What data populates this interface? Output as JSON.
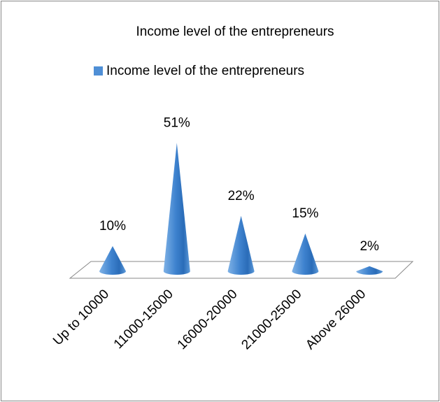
{
  "chart_data": {
    "type": "cone",
    "title": "Income level of the entrepreneurs",
    "categories": [
      "Up to 10000",
      "11000-15000",
      "16000-20000",
      "21000-25000",
      "Above 26000"
    ],
    "series": [
      {
        "name": "Income level of the entrepreneurs",
        "color": "#4f8fd6",
        "values": [
          10,
          51,
          22,
          15,
          2
        ],
        "value_labels": [
          "10%",
          "51%",
          "22%",
          "15%",
          "2%"
        ]
      }
    ],
    "legend": "top"
  }
}
